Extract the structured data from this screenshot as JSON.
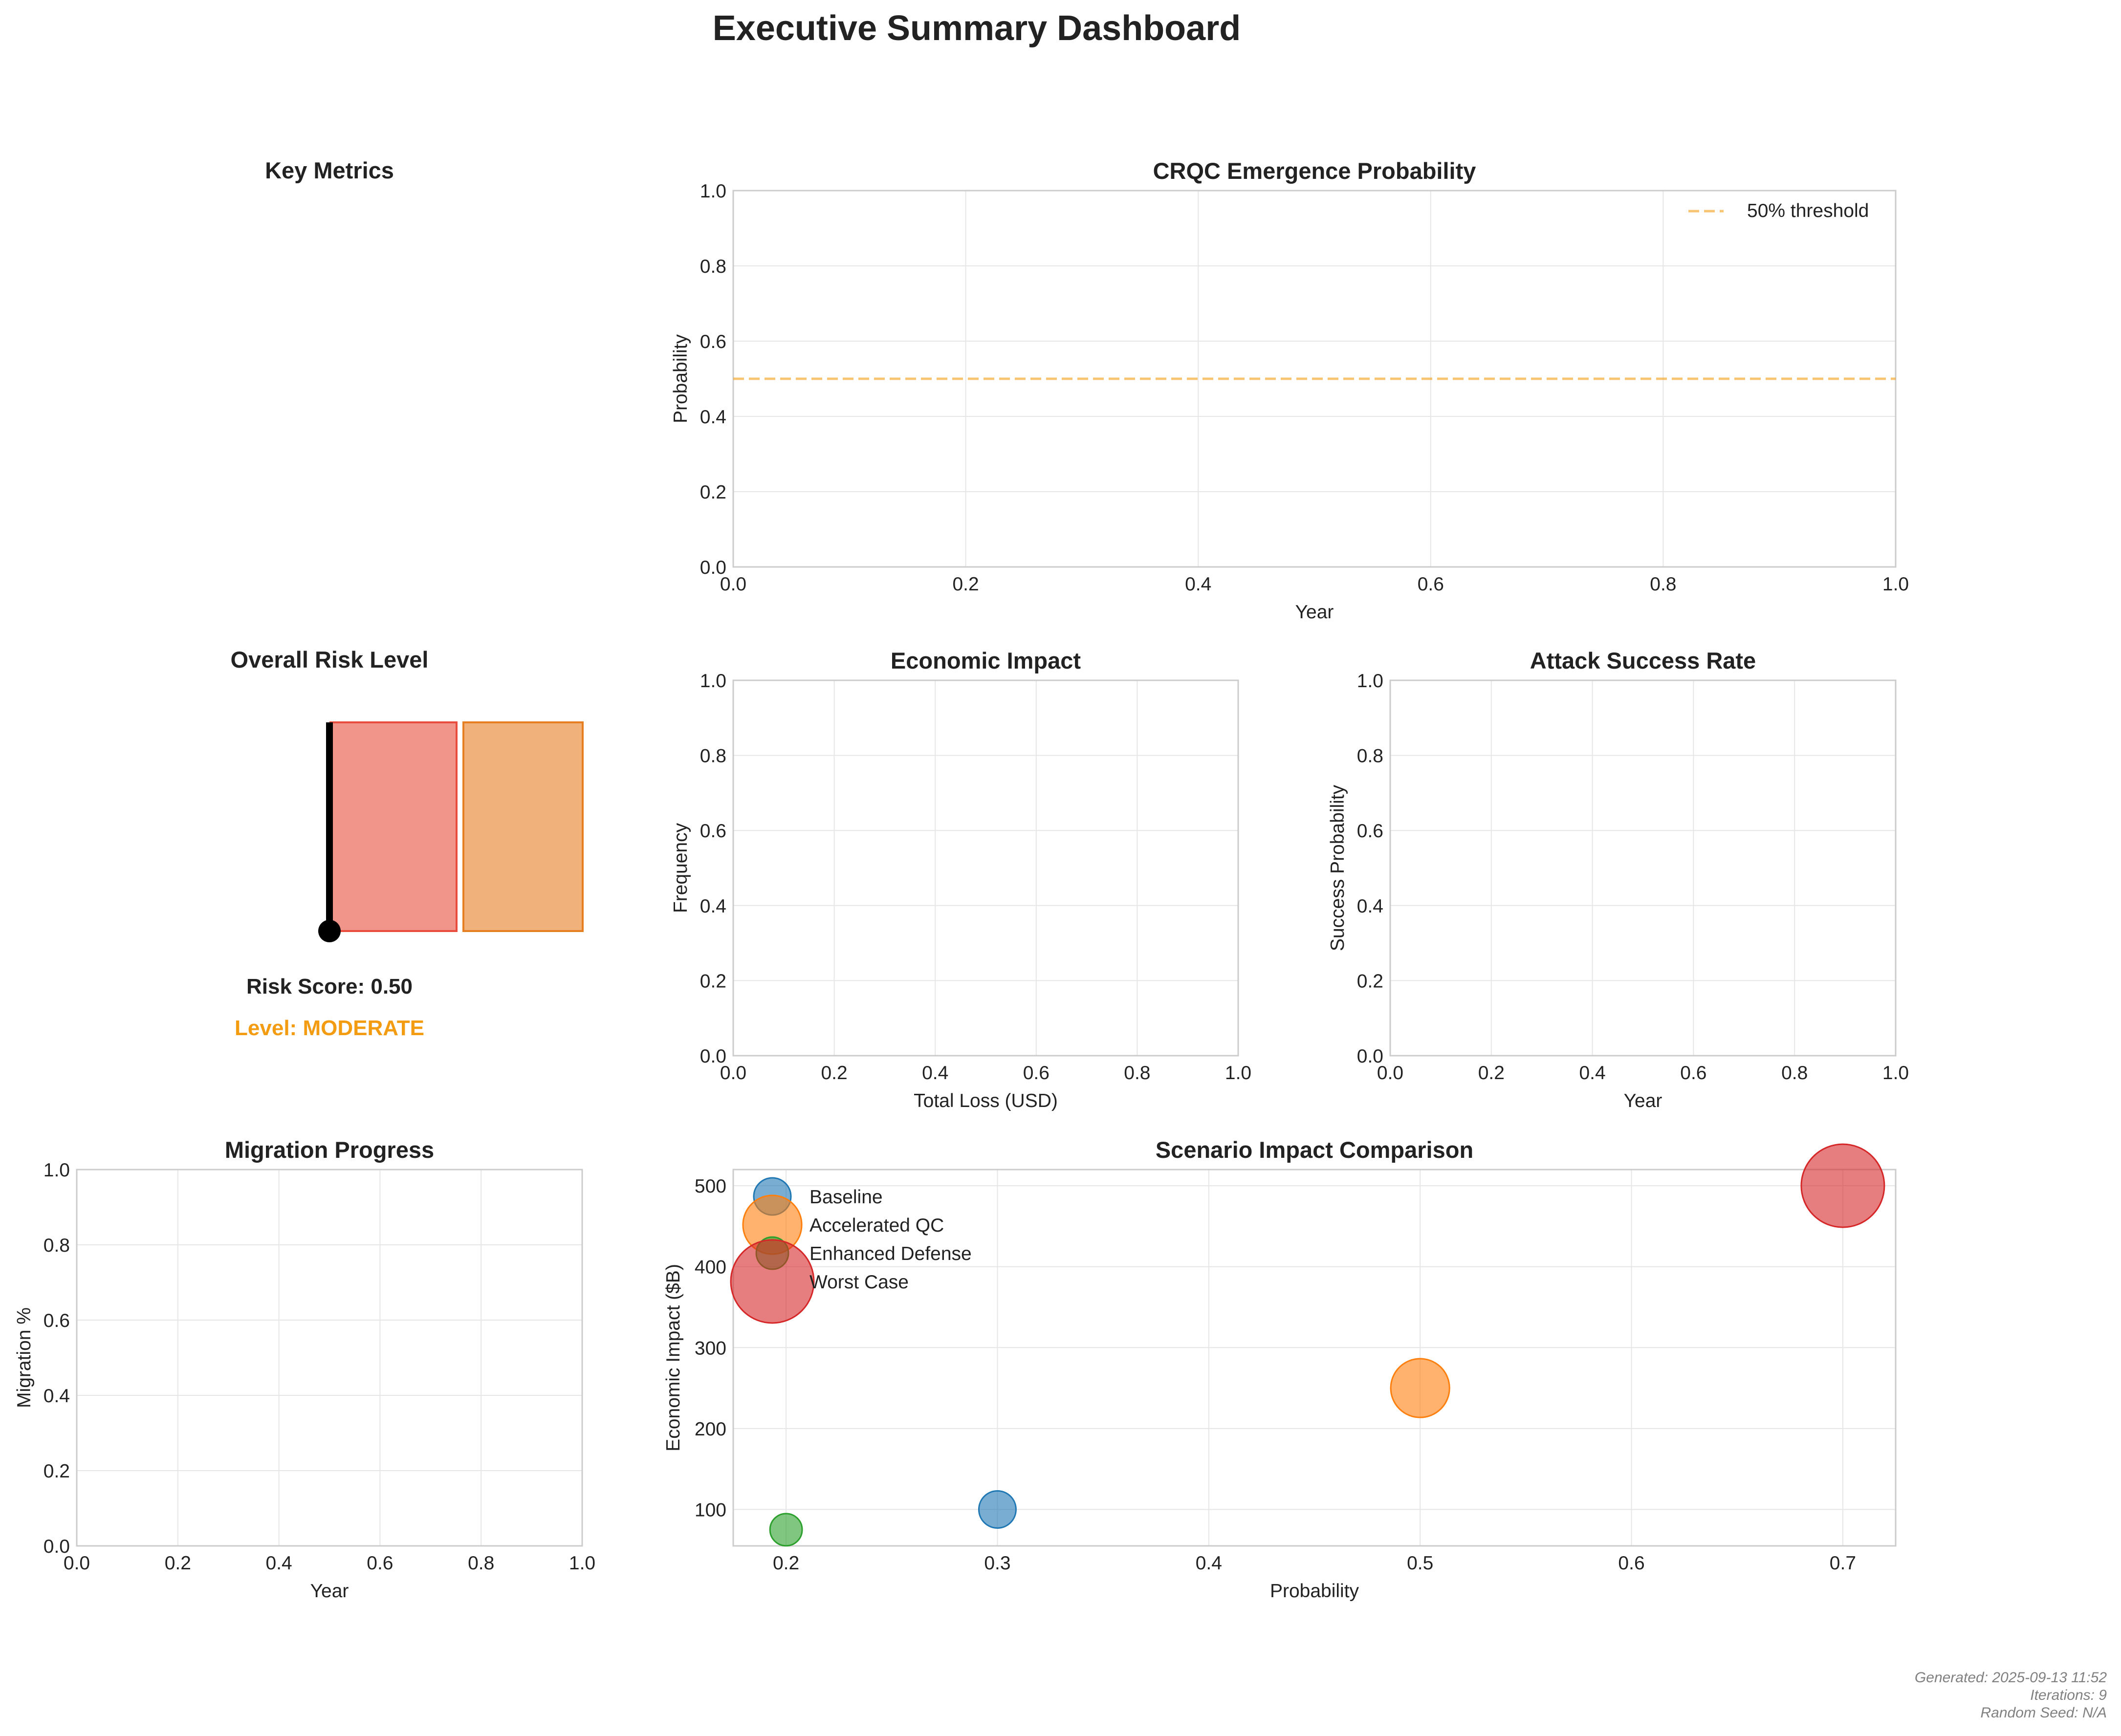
{
  "dashboard_title": "Executive Summary Dashboard",
  "key_metrics": {
    "title": "Key Metrics"
  },
  "risk_gauge": {
    "title": "Overall Risk Level",
    "score_text": "Risk Score: 0.50",
    "level_text": "Level: MODERATE",
    "score": 0.5,
    "level_color": "#f39c12",
    "segment_colors": [
      "#e74c3c",
      "#e67e22"
    ]
  },
  "footer": {
    "generated": "Generated: 2025-09-13 11:52",
    "iterations": "Iterations: 9",
    "seed": "Random Seed: N/A"
  },
  "chart_data": [
    {
      "id": "crqc",
      "type": "line",
      "title": "CRQC Emergence Probability",
      "xlabel": "Year",
      "ylabel": "Probability",
      "xlim": [
        0,
        1
      ],
      "ylim": [
        0,
        1
      ],
      "xticks": [
        "0.0",
        "0.2",
        "0.4",
        "0.6",
        "0.8",
        "1.0"
      ],
      "yticks": [
        "0.0",
        "0.2",
        "0.4",
        "0.6",
        "0.8",
        "1.0"
      ],
      "grid": true,
      "series": [],
      "reference_line": {
        "y": 0.5,
        "label": "50% threshold",
        "color": "#f39c12",
        "style": "dashed"
      },
      "legend_position": "upper right"
    },
    {
      "id": "economic",
      "type": "bar",
      "title": "Economic Impact",
      "xlabel": "Total Loss (USD)",
      "ylabel": "Frequency",
      "xlim": [
        0,
        1
      ],
      "ylim": [
        0,
        1
      ],
      "xticks": [
        "0.0",
        "0.2",
        "0.4",
        "0.6",
        "0.8",
        "1.0"
      ],
      "yticks": [
        "0.0",
        "0.2",
        "0.4",
        "0.6",
        "0.8",
        "1.0"
      ],
      "grid": true,
      "series": []
    },
    {
      "id": "attack",
      "type": "line",
      "title": "Attack Success Rate",
      "xlabel": "Year",
      "ylabel": "Success Probability",
      "xlim": [
        0,
        1
      ],
      "ylim": [
        0,
        1
      ],
      "xticks": [
        "0.0",
        "0.2",
        "0.4",
        "0.6",
        "0.8",
        "1.0"
      ],
      "yticks": [
        "0.0",
        "0.2",
        "0.4",
        "0.6",
        "0.8",
        "1.0"
      ],
      "grid": true,
      "series": []
    },
    {
      "id": "migration",
      "type": "line",
      "title": "Migration Progress",
      "xlabel": "Year",
      "ylabel": "Migration %",
      "xlim": [
        0,
        1
      ],
      "ylim": [
        0,
        1
      ],
      "xticks": [
        "0.0",
        "0.2",
        "0.4",
        "0.6",
        "0.8",
        "1.0"
      ],
      "yticks": [
        "0.0",
        "0.2",
        "0.4",
        "0.6",
        "0.8",
        "1.0"
      ],
      "grid": true,
      "series": []
    },
    {
      "id": "scenario",
      "type": "scatter",
      "title": "Scenario Impact Comparison",
      "xlabel": "Probability",
      "ylabel": "Economic Impact ($B)",
      "xlim": [
        0.175,
        0.725
      ],
      "ylim": [
        55,
        520
      ],
      "xticks": [
        "0.2",
        "0.3",
        "0.4",
        "0.5",
        "0.6",
        "0.7"
      ],
      "yticks": [
        "100",
        "200",
        "300",
        "400",
        "500"
      ],
      "grid": true,
      "legend_position": "upper left",
      "series": [
        {
          "name": "Baseline",
          "x": 0.3,
          "y": 100,
          "size": 100,
          "color": "#1f77b4"
        },
        {
          "name": "Accelerated QC",
          "x": 0.5,
          "y": 250,
          "size": 250,
          "color": "#ff7f0e"
        },
        {
          "name": "Enhanced Defense",
          "x": 0.2,
          "y": 75,
          "size": 75,
          "color": "#2ca02c"
        },
        {
          "name": "Worst Case",
          "x": 0.7,
          "y": 500,
          "size": 500,
          "color": "#d62728"
        }
      ]
    }
  ]
}
